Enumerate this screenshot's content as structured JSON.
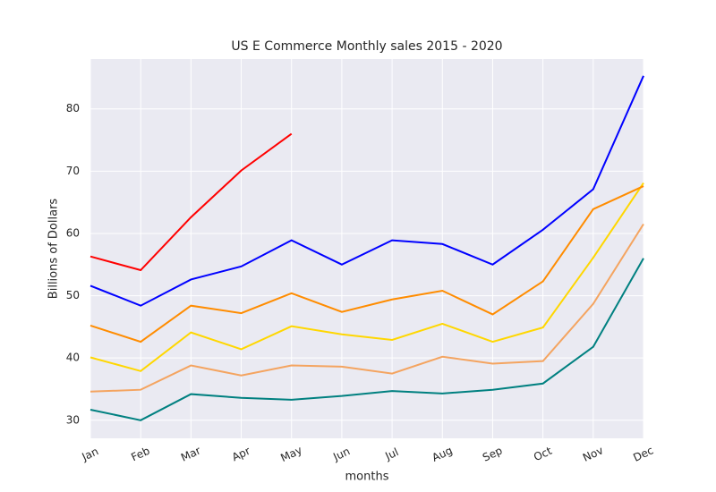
{
  "chart_data": {
    "type": "line",
    "title": "US E Commerce Monthly sales 2015 - 2020",
    "x_label": "months",
    "y_label": "Billions of Dollars",
    "categories": [
      "Jan",
      "Feb",
      "Mar",
      "Apr",
      "May",
      "Jun",
      "Jul",
      "Aug",
      "Sep",
      "Oct",
      "Nov",
      "Dec"
    ],
    "series": [
      {
        "color": "#008080",
        "values": [
          31.7,
          30.0,
          34.2,
          33.6,
          33.3,
          33.9,
          34.7,
          34.3,
          34.9,
          35.9,
          41.8,
          56.0
        ]
      },
      {
        "color": "#f4a460",
        "values": [
          34.6,
          34.9,
          38.8,
          37.2,
          38.8,
          38.6,
          37.5,
          40.2,
          39.1,
          39.5,
          48.7,
          61.5
        ]
      },
      {
        "color": "#ffd700",
        "values": [
          40.1,
          37.9,
          44.1,
          41.4,
          45.1,
          43.8,
          42.9,
          45.5,
          42.6,
          44.9,
          56.1,
          68.1
        ]
      },
      {
        "color": "#ff8c00",
        "values": [
          45.2,
          42.6,
          48.4,
          47.2,
          50.4,
          47.4,
          49.4,
          50.8,
          47.0,
          52.3,
          63.9,
          67.6
        ]
      },
      {
        "color": "#0000ff",
        "values": [
          51.6,
          48.4,
          52.6,
          54.7,
          58.9,
          55.0,
          58.9,
          58.3,
          55.0,
          60.6,
          67.1,
          85.3
        ]
      },
      {
        "color": "#ff0000",
        "values": [
          56.3,
          54.1,
          62.6,
          70.1,
          76.0,
          null,
          null,
          null,
          null,
          null,
          null,
          null
        ]
      }
    ],
    "ylim": [
      27.1,
      88.0
    ],
    "yticks": [
      30,
      40,
      50,
      60,
      70,
      80
    ],
    "grid": true
  }
}
